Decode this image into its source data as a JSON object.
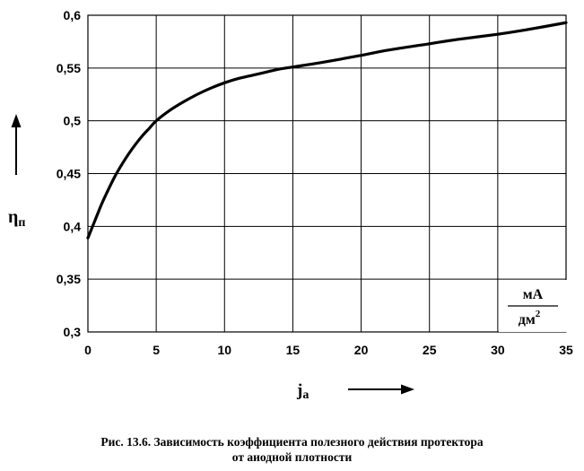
{
  "chart_data": {
    "type": "line",
    "ylabel_main": "η",
    "ylabel_sub": "п",
    "xlabel_main": "j",
    "xlabel_sub": "а",
    "units": {
      "numerator": "мА",
      "denominator": "дм",
      "power": "2"
    },
    "xlim": [
      0,
      35
    ],
    "ylim": [
      0.3,
      0.6
    ],
    "x_ticks": [
      "0",
      "5",
      "10",
      "15",
      "20",
      "25",
      "30",
      "35"
    ],
    "y_ticks": [
      "0,3",
      "0,35",
      "0,4",
      "0,45",
      "0,5",
      "0,55",
      "0,6"
    ],
    "grid": true,
    "series": [
      {
        "x": [
          0,
          0.5,
          1,
          1.5,
          2,
          2.5,
          3,
          3.5,
          4,
          4.5,
          5,
          6,
          7,
          8,
          9,
          10,
          11,
          12,
          13,
          14,
          15,
          17,
          20,
          22,
          25,
          27,
          30,
          32,
          35
        ],
        "y": [
          0.389,
          0.405,
          0.421,
          0.435,
          0.448,
          0.459,
          0.469,
          0.478,
          0.486,
          0.493,
          0.5,
          0.51,
          0.518,
          0.525,
          0.531,
          0.536,
          0.54,
          0.543,
          0.546,
          0.549,
          0.551,
          0.555,
          0.562,
          0.567,
          0.573,
          0.577,
          0.582,
          0.586,
          0.593
        ]
      }
    ]
  },
  "caption": {
    "line1": "Рис. 13.6. Зависимость коэффициента полезного действия протектора",
    "line2": "от аиодной плотности"
  },
  "colors": {
    "line": "#000000",
    "grid": "#000000",
    "background": "#ffffff"
  }
}
